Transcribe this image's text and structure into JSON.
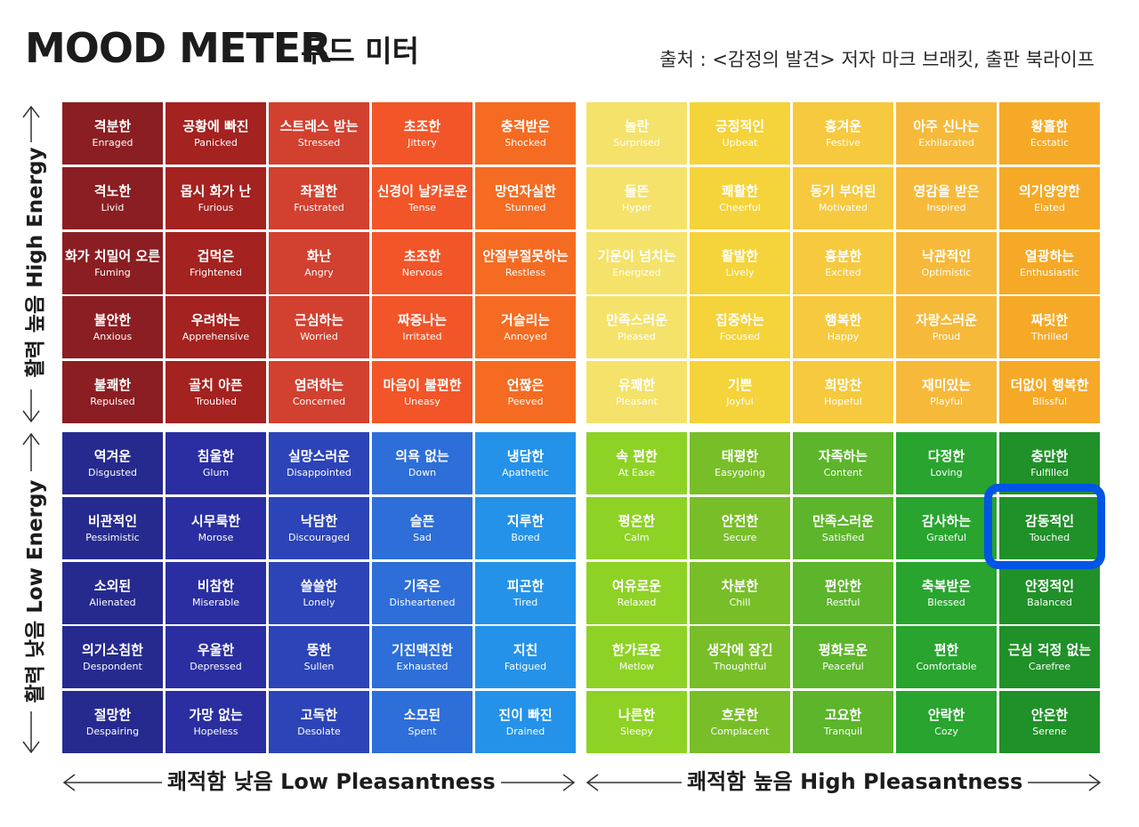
{
  "header": {
    "title_en": "MOOD METER",
    "title_ko": "무드 미터",
    "source": "출처 : <감정의 발견> 저자 마크 브래킷, 출판 북라이프"
  },
  "axes": {
    "high_energy": "활력 높음 High Energy",
    "low_energy": "활력 낮음 Low Energy",
    "low_pleasantness": "쾌적함 낮음 Low Pleasantness",
    "high_pleasantness": "쾌적함 높음  High Pleasantness"
  },
  "colors": {
    "red": [
      "#8b1e22",
      "#a4221f",
      "#d2402f",
      "#f25528",
      "#f56b22"
    ],
    "yellow": [
      "#f4e26a",
      "#f5d33a",
      "#f6c93e",
      "#f6b93a",
      "#f6a926"
    ],
    "blue": [
      "#262a8f",
      "#2a2ea0",
      "#2c44b8",
      "#2d6ed8",
      "#2492e8"
    ],
    "green": [
      "#8ed225",
      "#78be28",
      "#5cb52a",
      "#28a42f",
      "#209028"
    ],
    "highlight": "#0055e6"
  },
  "quadrants": {
    "red": [
      [
        {
          "ko": "격분한",
          "en": "Enraged"
        },
        {
          "ko": "공황에 빠진",
          "en": "Panicked"
        },
        {
          "ko": "스트레스 받는",
          "en": "Stressed"
        },
        {
          "ko": "초조한",
          "en": "Jittery"
        },
        {
          "ko": "충격받은",
          "en": "Shocked"
        }
      ],
      [
        {
          "ko": "격노한",
          "en": "Livid"
        },
        {
          "ko": "몹시 화가 난",
          "en": "Furious"
        },
        {
          "ko": "좌절한",
          "en": "Frustrated"
        },
        {
          "ko": "신경이 날카로운",
          "en": "Tense"
        },
        {
          "ko": "망연자실한",
          "en": "Stunned"
        }
      ],
      [
        {
          "ko": "화가 치밀어 오른",
          "en": "Fuming"
        },
        {
          "ko": "겁먹은",
          "en": "Frightened"
        },
        {
          "ko": "화난",
          "en": "Angry"
        },
        {
          "ko": "초조한",
          "en": "Nervous"
        },
        {
          "ko": "안절부절못하는",
          "en": "Restless"
        }
      ],
      [
        {
          "ko": "불안한",
          "en": "Anxious"
        },
        {
          "ko": "우려하는",
          "en": "Apprehensive"
        },
        {
          "ko": "근심하는",
          "en": "Worried"
        },
        {
          "ko": "짜증나는",
          "en": "Irritated"
        },
        {
          "ko": "거슬리는",
          "en": "Annoyed"
        }
      ],
      [
        {
          "ko": "불쾌한",
          "en": "Repulsed"
        },
        {
          "ko": "골치 아픈",
          "en": "Troubled"
        },
        {
          "ko": "염려하는",
          "en": "Concerned"
        },
        {
          "ko": "마음이 불편한",
          "en": "Uneasy"
        },
        {
          "ko": "언짢은",
          "en": "Peeved"
        }
      ]
    ],
    "yellow": [
      [
        {
          "ko": "놀란",
          "en": "Surprised"
        },
        {
          "ko": "긍정적인",
          "en": "Upbeat"
        },
        {
          "ko": "흥겨운",
          "en": "Festive"
        },
        {
          "ko": "아주 신나는",
          "en": "Exhilarated"
        },
        {
          "ko": "황홀한",
          "en": "Ecstatic"
        }
      ],
      [
        {
          "ko": "들뜬",
          "en": "Hyper"
        },
        {
          "ko": "쾌활한",
          "en": "Cheerful"
        },
        {
          "ko": "동기 부여된",
          "en": "Motivated"
        },
        {
          "ko": "영감을 받은",
          "en": "Inspired"
        },
        {
          "ko": "의기양양한",
          "en": "Elated"
        }
      ],
      [
        {
          "ko": "기운이 넘치는",
          "en": "Energized"
        },
        {
          "ko": "활발한",
          "en": "Lively"
        },
        {
          "ko": "흥분한",
          "en": "Excited"
        },
        {
          "ko": "낙관적인",
          "en": "Optimistic"
        },
        {
          "ko": "열광하는",
          "en": "Enthusiastic"
        }
      ],
      [
        {
          "ko": "만족스러운",
          "en": "Pleased"
        },
        {
          "ko": "집중하는",
          "en": "Focused"
        },
        {
          "ko": "행복한",
          "en": "Happy"
        },
        {
          "ko": "자랑스러운",
          "en": "Proud"
        },
        {
          "ko": "짜릿한",
          "en": "Thrilled"
        }
      ],
      [
        {
          "ko": "유쾌한",
          "en": "Pleasant"
        },
        {
          "ko": "기쁜",
          "en": "Joyful"
        },
        {
          "ko": "희망찬",
          "en": "Hopeful"
        },
        {
          "ko": "재미있는",
          "en": "Playful"
        },
        {
          "ko": "더없이 행복한",
          "en": "Blissful"
        }
      ]
    ],
    "blue": [
      [
        {
          "ko": "역겨운",
          "en": "Disgusted"
        },
        {
          "ko": "침울한",
          "en": "Glum"
        },
        {
          "ko": "실망스러운",
          "en": "Disappointed"
        },
        {
          "ko": "의욕 없는",
          "en": "Down"
        },
        {
          "ko": "냉담한",
          "en": "Apathetic"
        }
      ],
      [
        {
          "ko": "비관적인",
          "en": "Pessimistic"
        },
        {
          "ko": "시무룩한",
          "en": "Morose"
        },
        {
          "ko": "낙담한",
          "en": "Discouraged"
        },
        {
          "ko": "슬픈",
          "en": "Sad"
        },
        {
          "ko": "지루한",
          "en": "Bored"
        }
      ],
      [
        {
          "ko": "소외된",
          "en": "Alienated"
        },
        {
          "ko": "비참한",
          "en": "Miserable"
        },
        {
          "ko": "쓸쓸한",
          "en": "Lonely"
        },
        {
          "ko": "기죽은",
          "en": "Disheartened"
        },
        {
          "ko": "피곤한",
          "en": "Tired"
        }
      ],
      [
        {
          "ko": "의기소침한",
          "en": "Despondent"
        },
        {
          "ko": "우울한",
          "en": "Depressed"
        },
        {
          "ko": "뚱한",
          "en": "Sullen"
        },
        {
          "ko": "기진맥진한",
          "en": "Exhausted"
        },
        {
          "ko": "지친",
          "en": "Fatigued"
        }
      ],
      [
        {
          "ko": "절망한",
          "en": "Despairing"
        },
        {
          "ko": "가망 없는",
          "en": "Hopeless"
        },
        {
          "ko": "고독한",
          "en": "Desolate"
        },
        {
          "ko": "소모된",
          "en": "Spent"
        },
        {
          "ko": "진이 빠진",
          "en": "Drained"
        }
      ]
    ],
    "green": [
      [
        {
          "ko": "속 편한",
          "en": "At Ease"
        },
        {
          "ko": "태평한",
          "en": "Easygoing"
        },
        {
          "ko": "자족하는",
          "en": "Content"
        },
        {
          "ko": "다정한",
          "en": "Loving"
        },
        {
          "ko": "충만한",
          "en": "Fulfilled"
        }
      ],
      [
        {
          "ko": "평온한",
          "en": "Calm"
        },
        {
          "ko": "안전한",
          "en": "Secure"
        },
        {
          "ko": "만족스러운",
          "en": "Satisfied"
        },
        {
          "ko": "감사하는",
          "en": "Grateful"
        },
        {
          "ko": "감동적인",
          "en": "Touched"
        }
      ],
      [
        {
          "ko": "여유로운",
          "en": "Relaxed"
        },
        {
          "ko": "차분한",
          "en": "Chill"
        },
        {
          "ko": "편안한",
          "en": "Restful"
        },
        {
          "ko": "축복받은",
          "en": "Blessed"
        },
        {
          "ko": "안정적인",
          "en": "Balanced"
        }
      ],
      [
        {
          "ko": "한가로운",
          "en": "Metlow"
        },
        {
          "ko": "생각에 잠긴",
          "en": "Thoughtful"
        },
        {
          "ko": "평화로운",
          "en": "Peaceful"
        },
        {
          "ko": "편한",
          "en": "Comfortable"
        },
        {
          "ko": "근심 걱정 없는",
          "en": "Carefree"
        }
      ],
      [
        {
          "ko": "나른한",
          "en": "Sleepy"
        },
        {
          "ko": "흐뭇한",
          "en": "Complacent"
        },
        {
          "ko": "고요한",
          "en": "Tranquil"
        },
        {
          "ko": "안락한",
          "en": "Cozy"
        },
        {
          "ko": "안온한",
          "en": "Serene"
        }
      ]
    ]
  },
  "highlighted": {
    "quadrant": "green",
    "row": 1,
    "col": 4
  }
}
